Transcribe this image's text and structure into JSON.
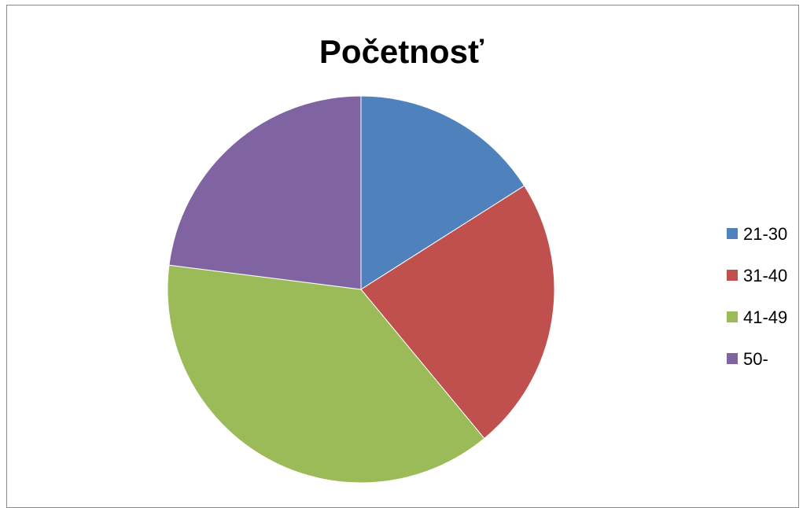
{
  "chart_data": {
    "type": "pie",
    "title": "Početnosť",
    "categories": [
      "21-30",
      "31-40",
      "41-49",
      "50-"
    ],
    "values": [
      16,
      23,
      38,
      23
    ],
    "start_angle_deg": 0,
    "direction": "clockwise",
    "colors": [
      "#4F81BD",
      "#C0504D",
      "#9BBB59",
      "#8064A2"
    ],
    "legend_position": "right"
  }
}
